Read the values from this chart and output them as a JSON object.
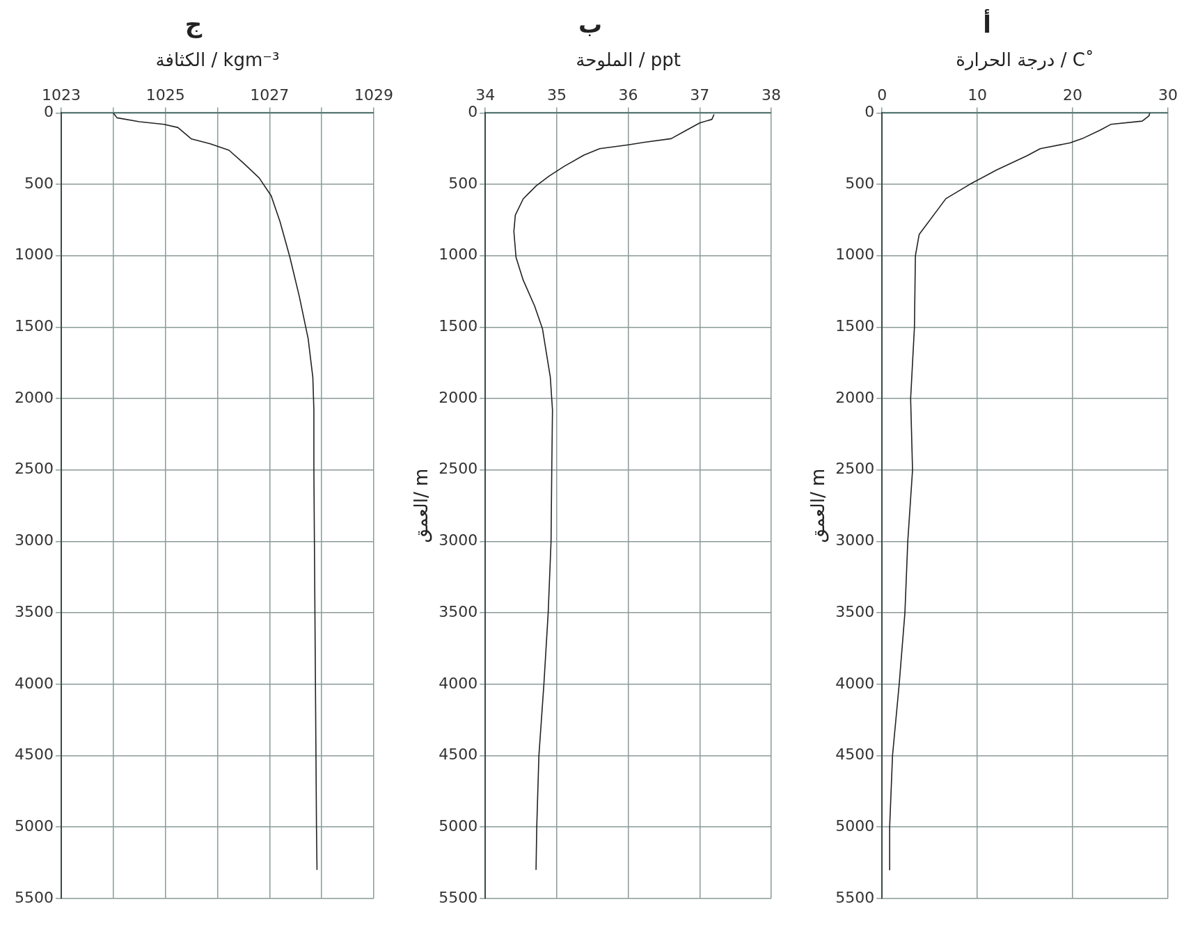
{
  "chart_data": [
    {
      "type": "line",
      "title": "أ",
      "xlabel": "درجة الحرارة / C˚",
      "ylabel": "العمق/ m",
      "xlim": [
        0,
        30
      ],
      "xticks": [
        0,
        10,
        20,
        30
      ],
      "ylim": [
        5500,
        0
      ],
      "yticks": [
        0,
        500,
        1000,
        1500,
        2000,
        2500,
        3000,
        3500,
        4000,
        4500,
        5000,
        5500
      ],
      "grid": true,
      "marker": "none",
      "legend": false,
      "series": [
        {
          "color": "#222222",
          "x": [
            28.1,
            28,
            27.3,
            24,
            22.9,
            21,
            19.7,
            16.6,
            15.2,
            12,
            9.2,
            6.7,
            3.9,
            3.5,
            3.4,
            3,
            3.2,
            2.7,
            2.4,
            1.8,
            1.1,
            0.8,
            0.8
          ],
          "values": [
            0,
            20,
            57,
            80,
            120,
            180,
            210,
            250,
            300,
            400,
            500,
            600,
            850,
            1000,
            1500,
            2000,
            2500,
            3000,
            3500,
            4000,
            4500,
            5000,
            5300
          ]
        }
      ]
    },
    {
      "type": "line",
      "title": "ب",
      "xlabel": "الملوحة / ppt",
      "ylabel": "العمق/ m",
      "xlim": [
        34,
        38
      ],
      "xticks": [
        34,
        35,
        36,
        37,
        38
      ],
      "ylim": [
        5500,
        0
      ],
      "yticks": [
        0,
        500,
        1000,
        1500,
        2000,
        2500,
        3000,
        3500,
        4000,
        4500,
        5000,
        5500
      ],
      "grid": true,
      "marker": "none",
      "legend": false,
      "series": [
        {
          "color": "#222222",
          "x": [
            37.2,
            37.17,
            37,
            36.8,
            36.6,
            36.23,
            36,
            35.6,
            35.38,
            35.1,
            34.89,
            34.71,
            34.53,
            34.42,
            34.4,
            34.43,
            34.53,
            34.69,
            34.8,
            34.91,
            34.94,
            34.93,
            34.92,
            34.88,
            34.82,
            34.75,
            34.72,
            34.71
          ],
          "values": [
            10,
            45,
            70,
            125,
            180,
            205,
            223,
            250,
            295,
            375,
            443,
            511,
            602,
            716,
            830,
            1011,
            1170,
            1352,
            1511,
            1852,
            2080,
            2500,
            3000,
            3500,
            4000,
            4500,
            5000,
            5300
          ]
        }
      ]
    },
    {
      "type": "line",
      "title": "ج",
      "xlabel": "الكثافة / kgm⁻³",
      "xlim": [
        1023,
        1029
      ],
      "xticks": [
        1023,
        {
          "value": 1024,
          "label": null
        },
        1025,
        {
          "value": 1026,
          "label": null
        },
        1027,
        {
          "value": 1028,
          "label": null
        },
        1029
      ],
      "ylim": [
        5500,
        0
      ],
      "yticks": [
        0,
        500,
        1000,
        1500,
        2000,
        2500,
        3000,
        3500,
        4000,
        4500,
        5000,
        5500
      ],
      "grid": true,
      "marker": "none",
      "legend": false,
      "series": [
        {
          "color": "#222222",
          "x": [
            1024,
            1024.07,
            1024.5,
            1024.97,
            1025.24,
            1025.5,
            1025.86,
            1026.22,
            1026.5,
            1026.8,
            1027.03,
            1027.2,
            1027.39,
            1027.57,
            1027.74,
            1027.83,
            1027.85,
            1027.85,
            1027.88,
            1027.9,
            1027.91
          ],
          "values": [
            0,
            34,
            61,
            80,
            102,
            182,
            216,
            261,
            352,
            455,
            580,
            761,
            1011,
            1284,
            1580,
            1852,
            2080,
            2500,
            4000,
            5000,
            5300
          ]
        }
      ]
    }
  ]
}
